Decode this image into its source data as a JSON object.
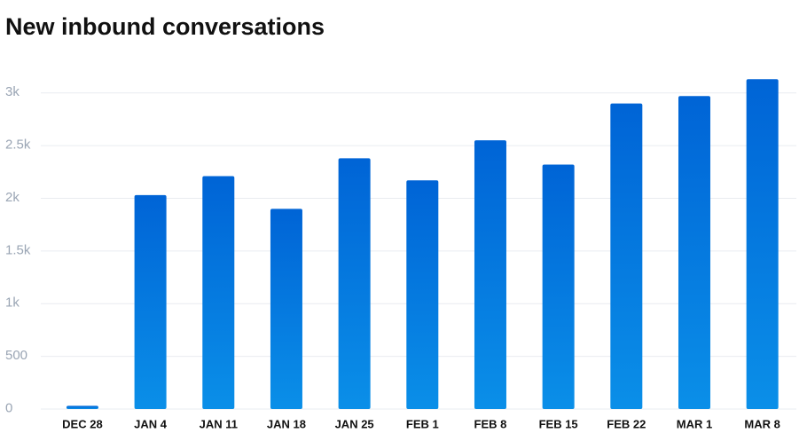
{
  "chart_data": {
    "type": "bar",
    "title": "New inbound conversations",
    "categories": [
      "DEC 28",
      "JAN 4",
      "JAN 11",
      "JAN 18",
      "JAN 25",
      "FEB 1",
      "FEB 8",
      "FEB 15",
      "FEB 22",
      "MAR 1",
      "MAR 8"
    ],
    "values": [
      30,
      2030,
      2210,
      1900,
      2380,
      2170,
      2550,
      2320,
      2900,
      2970,
      3130
    ],
    "color": "#0068d8",
    "ylim": [
      0,
      3250
    ],
    "yticks": [
      0,
      500,
      {
        "value": 1000,
        "label": "1k"
      },
      {
        "value": 1500,
        "label": "1.5k"
      },
      {
        "value": 2000,
        "label": "2k"
      },
      {
        "value": 2500,
        "label": "2.5k"
      },
      {
        "value": 3000,
        "label": "3k"
      }
    ],
    "grid": true
  }
}
